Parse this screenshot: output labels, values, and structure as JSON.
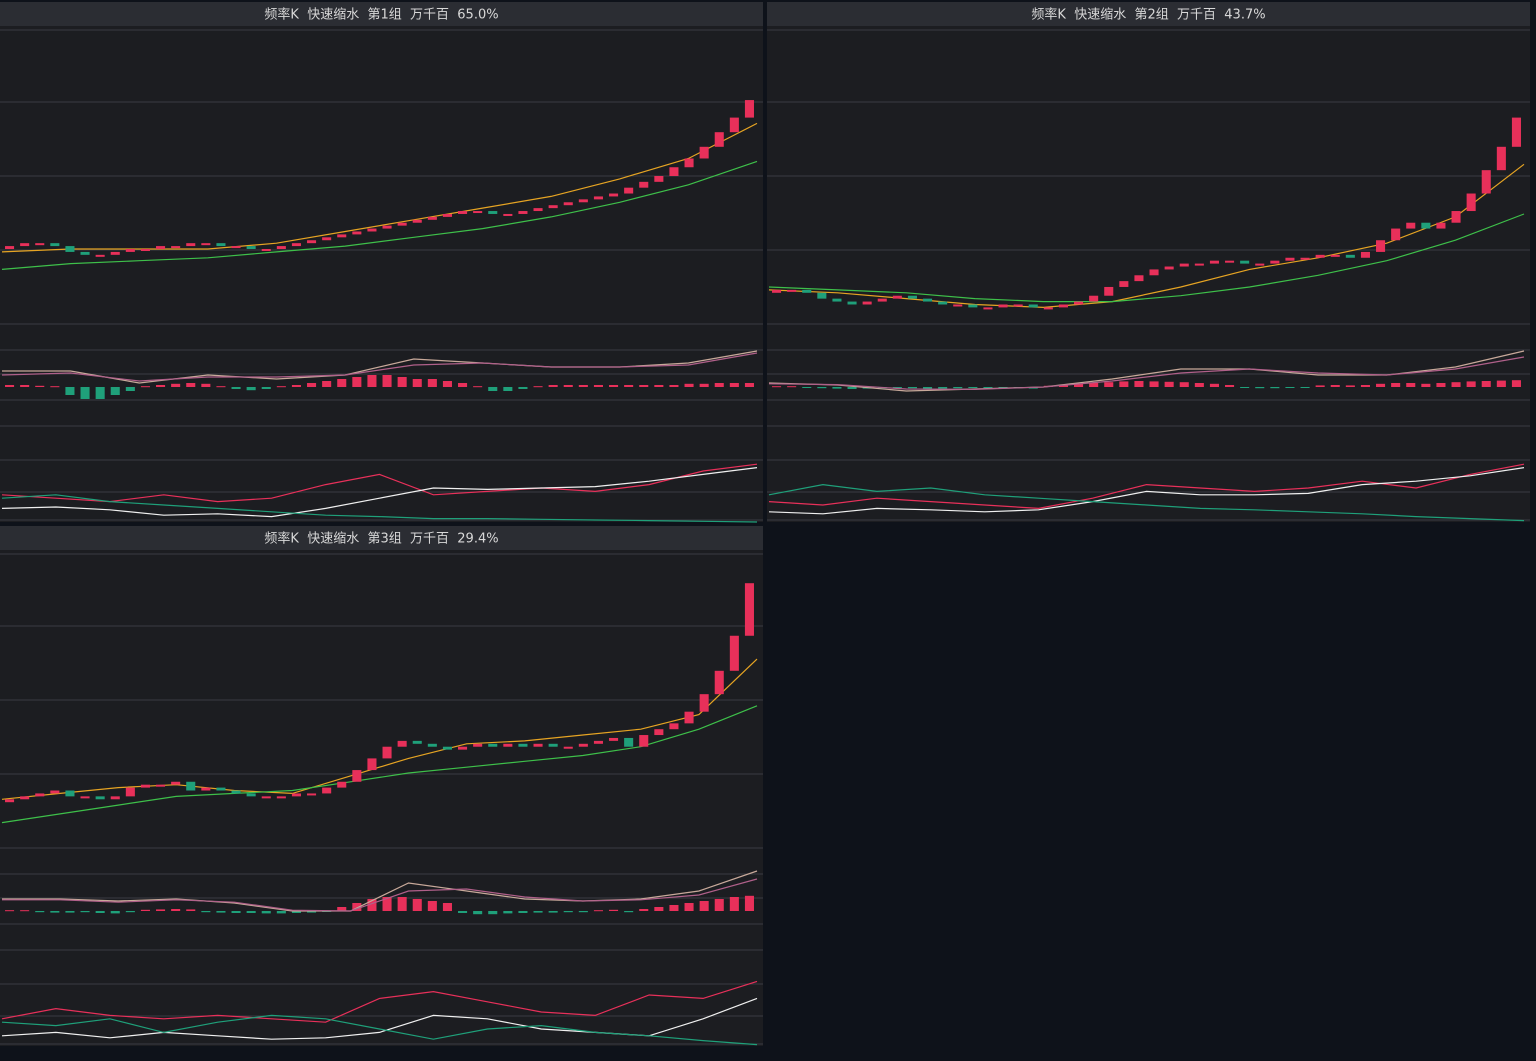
{
  "panels": [
    {
      "title": "频率K  快速缩水  第1组  万千百  65.0%",
      "price": {
        "ylim": [
          0,
          100
        ],
        "open": [
          25,
          26,
          27,
          27,
          26,
          24,
          23,
          23,
          24,
          25,
          25,
          26,
          26,
          27,
          27,
          26,
          26,
          25,
          25,
          26,
          27,
          28,
          29,
          30,
          31,
          32,
          33,
          34,
          35,
          36,
          37,
          38,
          38,
          37,
          37,
          38,
          39,
          40,
          41,
          42,
          43,
          44,
          46,
          48,
          50,
          53,
          56,
          60,
          65,
          70
        ],
        "close": [
          26,
          27,
          27,
          26,
          24,
          23,
          23,
          24,
          25,
          25,
          26,
          26,
          27,
          27,
          26,
          26,
          25,
          25,
          26,
          27,
          28,
          29,
          30,
          31,
          32,
          33,
          34,
          35,
          36,
          37,
          38,
          38,
          37,
          37,
          38,
          39,
          40,
          41,
          42,
          43,
          44,
          46,
          48,
          50,
          53,
          56,
          60,
          65,
          70,
          76
        ],
        "lines": [
          {
            "color": "#e6a423",
            "values": [
              24,
              25,
              25,
              25,
              27,
              31,
              35,
              39,
              43,
              49,
              56,
              68
            ]
          },
          {
            "color": "#3ec04a",
            "values": [
              18,
              20,
              21,
              22,
              24,
              26,
              29,
              32,
              36,
              41,
              47,
              55
            ]
          }
        ]
      },
      "macd": {
        "ylim": [
          -1,
          1
        ],
        "bars": [
          0.05,
          0.05,
          0.03,
          0.02,
          -0.2,
          -0.3,
          -0.3,
          -0.2,
          -0.1,
          0.02,
          0.05,
          0.08,
          0.1,
          0.08,
          0.02,
          -0.05,
          -0.08,
          -0.05,
          0.02,
          0.05,
          0.1,
          0.15,
          0.2,
          0.25,
          0.3,
          0.3,
          0.25,
          0.2,
          0.2,
          0.15,
          0.1,
          0.02,
          -0.1,
          -0.1,
          -0.05,
          0.02,
          0.05,
          0.05,
          0.05,
          0.05,
          0.05,
          0.05,
          0.05,
          0.05,
          0.05,
          0.08,
          0.08,
          0.1,
          0.1,
          0.1
        ],
        "lines": [
          {
            "color": "#c8a99a",
            "values": [
              0.4,
              0.4,
              0.1,
              0.3,
              0.2,
              0.3,
              0.7,
              0.6,
              0.5,
              0.5,
              0.6,
              0.9
            ]
          },
          {
            "color": "#b0608a",
            "values": [
              0.3,
              0.35,
              0.15,
              0.25,
              0.25,
              0.3,
              0.55,
              0.6,
              0.5,
              0.5,
              0.55,
              0.85
            ]
          }
        ]
      },
      "kdj": {
        "ylim": [
          0,
          100
        ],
        "lines": [
          {
            "color": "#e8305a",
            "values": [
              40,
              35,
              30,
              40,
              30,
              35,
              55,
              70,
              40,
              45,
              50,
              45,
              55,
              75,
              85
            ]
          },
          {
            "color": "#f0f0f0",
            "values": [
              20,
              22,
              18,
              10,
              12,
              8,
              20,
              35,
              50,
              48,
              50,
              52,
              60,
              70,
              80
            ]
          },
          {
            "color": "#1fa07a",
            "values": [
              35,
              40,
              30,
              25,
              20,
              15,
              10,
              8,
              5,
              5,
              4,
              3,
              2,
              1,
              0
            ]
          }
        ]
      }
    },
    {
      "title": "频率K  快速缩水  第2组  万千百  43.7%",
      "price": {
        "ylim": [
          0,
          100
        ],
        "open": [
          10,
          11,
          11,
          10,
          8,
          7,
          6,
          7,
          8,
          9,
          8,
          7,
          6,
          6,
          5,
          5,
          6,
          6,
          5,
          5,
          6,
          7,
          9,
          12,
          14,
          16,
          18,
          19,
          20,
          20,
          21,
          21,
          20,
          20,
          21,
          22,
          22,
          23,
          23,
          22,
          24,
          28,
          32,
          34,
          32,
          34,
          38,
          44,
          52,
          60
        ],
        "close": [
          11,
          11,
          10,
          8,
          7,
          6,
          7,
          8,
          9,
          8,
          7,
          6,
          6,
          5,
          5,
          6,
          6,
          5,
          5,
          6,
          7,
          9,
          12,
          14,
          16,
          18,
          19,
          20,
          20,
          21,
          21,
          20,
          20,
          21,
          22,
          22,
          23,
          23,
          22,
          24,
          28,
          32,
          34,
          32,
          34,
          38,
          44,
          52,
          60,
          70
        ],
        "lines": [
          {
            "color": "#e6a423",
            "values": [
              11,
              10,
              8,
              6,
              5,
              7,
              12,
              18,
              22,
              27,
              36,
              54
            ]
          },
          {
            "color": "#3ec04a",
            "values": [
              12,
              11,
              10,
              8,
              7,
              7,
              9,
              12,
              16,
              21,
              28,
              37
            ]
          }
        ]
      },
      "macd": {
        "ylim": [
          -1,
          1
        ],
        "bars": [
          0.02,
          0.02,
          -0.02,
          -0.03,
          -0.04,
          -0.05,
          -0.04,
          -0.03,
          -0.02,
          -0.03,
          -0.04,
          -0.04,
          -0.03,
          -0.02,
          -0.02,
          -0.02,
          -0.03,
          -0.04,
          0.03,
          0.05,
          0.08,
          0.1,
          0.12,
          0.14,
          0.15,
          0.14,
          0.13,
          0.12,
          0.1,
          0.08,
          0.05,
          -0.02,
          -0.03,
          -0.03,
          -0.02,
          -0.02,
          0.04,
          0.05,
          0.04,
          0.05,
          0.08,
          0.1,
          0.1,
          0.08,
          0.1,
          0.12,
          0.14,
          0.15,
          0.16,
          0.17
        ],
        "lines": [
          {
            "color": "#c8a99a",
            "values": [
              0.1,
              0.05,
              -0.1,
              -0.05,
              0.0,
              0.2,
              0.45,
              0.45,
              0.3,
              0.3,
              0.5,
              0.9
            ]
          },
          {
            "color": "#b0608a",
            "values": [
              0.08,
              0.06,
              -0.05,
              -0.06,
              0.0,
              0.15,
              0.35,
              0.45,
              0.35,
              0.3,
              0.45,
              0.75
            ]
          }
        ]
      },
      "kdj": {
        "ylim": [
          0,
          100
        ],
        "lines": [
          {
            "color": "#e8305a",
            "values": [
              30,
              25,
              35,
              30,
              25,
              20,
              35,
              55,
              50,
              45,
              50,
              60,
              50,
              70,
              85
            ]
          },
          {
            "color": "#f0f0f0",
            "values": [
              15,
              12,
              20,
              18,
              15,
              18,
              30,
              45,
              40,
              40,
              42,
              55,
              60,
              68,
              80
            ]
          },
          {
            "color": "#1fa07a",
            "values": [
              40,
              55,
              45,
              50,
              40,
              35,
              30,
              25,
              20,
              18,
              15,
              12,
              8,
              5,
              2
            ]
          }
        ]
      }
    },
    {
      "title": "频率K  快速缩水  第3组  万千百  29.4%",
      "price": {
        "ylim": [
          0,
          100
        ],
        "open": [
          15,
          16,
          17,
          18,
          19,
          17,
          17,
          16,
          17,
          20,
          21,
          21,
          22,
          19,
          20,
          19,
          18,
          17,
          17,
          17,
          18,
          18,
          20,
          22,
          26,
          30,
          34,
          36,
          35,
          34,
          33,
          34,
          35,
          34,
          35,
          34,
          35,
          34,
          34,
          35,
          36,
          37,
          34,
          38,
          40,
          42,
          46,
          52,
          60,
          72
        ],
        "close": [
          16,
          17,
          18,
          19,
          17,
          17,
          16,
          17,
          20,
          21,
          21,
          22,
          19,
          20,
          19,
          18,
          17,
          17,
          17,
          18,
          18,
          20,
          22,
          26,
          30,
          34,
          36,
          35,
          34,
          33,
          34,
          35,
          34,
          35,
          34,
          35,
          34,
          34,
          35,
          36,
          37,
          34,
          38,
          40,
          42,
          46,
          52,
          60,
          72,
          90
        ],
        "lines": [
          {
            "color": "#e6a423",
            "values": [
              16,
              18,
              20,
              21,
              19,
              18,
              24,
              30,
              35,
              36,
              38,
              40,
              45,
              64
            ]
          },
          {
            "color": "#3ec04a",
            "values": [
              8,
              11,
              14,
              17,
              18,
              19,
              22,
              25,
              27,
              29,
              31,
              34,
              40,
              48
            ]
          }
        ]
      },
      "macd": {
        "ylim": [
          -1,
          1
        ],
        "bars": [
          0.02,
          0.02,
          -0.03,
          -0.04,
          -0.04,
          -0.03,
          -0.05,
          -0.06,
          -0.03,
          0.03,
          0.04,
          0.05,
          0.04,
          -0.03,
          -0.04,
          -0.05,
          -0.05,
          -0.06,
          -0.06,
          -0.05,
          -0.04,
          -0.02,
          0.1,
          0.2,
          0.3,
          0.35,
          0.35,
          0.3,
          0.25,
          0.2,
          -0.05,
          -0.08,
          -0.08,
          -0.06,
          -0.05,
          -0.04,
          -0.04,
          -0.03,
          -0.03,
          0.02,
          0.03,
          -0.03,
          0.05,
          0.1,
          0.15,
          0.2,
          0.25,
          0.3,
          0.35,
          0.38
        ],
        "lines": [
          {
            "color": "#c8a99a",
            "values": [
              0.3,
              0.3,
              0.25,
              0.3,
              0.2,
              0.0,
              0.0,
              0.7,
              0.5,
              0.3,
              0.25,
              0.3,
              0.5,
              1.0
            ]
          },
          {
            "color": "#b0608a",
            "values": [
              0.28,
              0.28,
              0.22,
              0.28,
              0.22,
              0.02,
              0.0,
              0.5,
              0.55,
              0.35,
              0.25,
              0.28,
              0.4,
              0.8
            ]
          }
        ]
      },
      "kdj": {
        "ylim": [
          0,
          100
        ],
        "lines": [
          {
            "color": "#e8305a",
            "values": [
              40,
              55,
              45,
              40,
              45,
              40,
              35,
              70,
              80,
              65,
              50,
              45,
              75,
              70,
              95
            ]
          },
          {
            "color": "#f0f0f0",
            "values": [
              15,
              20,
              12,
              20,
              15,
              10,
              12,
              20,
              45,
              40,
              25,
              20,
              15,
              40,
              70
            ]
          },
          {
            "color": "#1fa07a",
            "values": [
              35,
              30,
              40,
              20,
              35,
              45,
              40,
              25,
              10,
              25,
              30,
              20,
              15,
              8,
              2
            ]
          }
        ]
      }
    }
  ]
}
